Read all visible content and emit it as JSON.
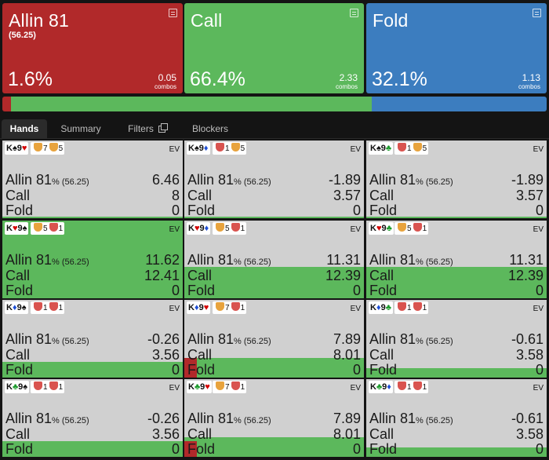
{
  "colors": {
    "allin": "#b1292a",
    "call": "#5cb85c",
    "fold": "#3c7dbf",
    "cell_bg": "#d0d0d0",
    "blocker_orange": "#e8a33d",
    "blocker_red": "#d9534f"
  },
  "actions": [
    {
      "name": "Allin 81",
      "sub": "(56.25)",
      "freq": "1.6%",
      "combos": "0.05",
      "combos_label": "combos",
      "color": "#b1292a",
      "share": 0.016
    },
    {
      "name": "Call",
      "sub": "",
      "freq": "66.4%",
      "combos": "2.33",
      "combos_label": "combos",
      "color": "#5cb85c",
      "share": 0.664
    },
    {
      "name": "Fold",
      "sub": "",
      "freq": "32.1%",
      "combos": "1.13",
      "combos_label": "combos",
      "color": "#3c7dbf",
      "share": 0.321
    }
  ],
  "tabs": [
    {
      "label": "Hands",
      "active": true
    },
    {
      "label": "Summary",
      "active": false
    },
    {
      "label": "Filters",
      "active": false,
      "icon": "copy-icon"
    },
    {
      "label": "Blockers",
      "active": false
    }
  ],
  "cell_labels": {
    "allin": "Allin 81",
    "allin_pct": "%",
    "allin_sub": "(56.25)",
    "call": "Call",
    "fold": "Fold",
    "ev": "EV"
  },
  "cells": [
    {
      "hand": [
        [
          "K",
          "♠",
          "#111"
        ],
        [
          "9",
          "♥",
          "#d40000"
        ]
      ],
      "blockers": [
        [
          "#e8a33d",
          "7"
        ],
        [
          "#e8a33d",
          "5"
        ]
      ],
      "allin": "6.46",
      "call": "8",
      "fold": "0",
      "f_allin": 0,
      "f_call": 0.02,
      "f_fold": 0.98
    },
    {
      "hand": [
        [
          "K",
          "♠",
          "#111"
        ],
        [
          "9",
          "♦",
          "#1f4fd6"
        ]
      ],
      "blockers": [
        [
          "#d9534f",
          "1"
        ],
        [
          "#e8a33d",
          "5"
        ]
      ],
      "allin": "-1.89",
      "call": "3.57",
      "fold": "0",
      "f_allin": 0,
      "f_call": 0.02,
      "f_fold": 0.98
    },
    {
      "hand": [
        [
          "K",
          "♠",
          "#111"
        ],
        [
          "9",
          "♣",
          "#1a9a2a"
        ]
      ],
      "blockers": [
        [
          "#d9534f",
          "1"
        ],
        [
          "#e8a33d",
          "5"
        ]
      ],
      "allin": "-1.89",
      "call": "3.57",
      "fold": "0",
      "f_allin": 0,
      "f_call": 0.02,
      "f_fold": 0.98
    },
    {
      "hand": [
        [
          "K",
          "♥",
          "#d40000"
        ],
        [
          "9",
          "♠",
          "#111"
        ]
      ],
      "blockers": [
        [
          "#e8a33d",
          "5"
        ],
        [
          "#d9534f",
          "1"
        ]
      ],
      "allin": "11.62",
      "call": "12.41",
      "fold": "0",
      "f_allin": 0,
      "f_call": 1,
      "f_fold": 0
    },
    {
      "hand": [
        [
          "K",
          "♥",
          "#d40000"
        ],
        [
          "9",
          "♦",
          "#1f4fd6"
        ]
      ],
      "blockers": [
        [
          "#e8a33d",
          "5"
        ],
        [
          "#d9534f",
          "1"
        ]
      ],
      "allin": "11.31",
      "call": "12.39",
      "fold": "0",
      "f_allin": 0,
      "f_call": 0.4,
      "f_fold": 0
    },
    {
      "hand": [
        [
          "K",
          "♥",
          "#d40000"
        ],
        [
          "9",
          "♣",
          "#1a9a2a"
        ]
      ],
      "blockers": [
        [
          "#e8a33d",
          "5"
        ],
        [
          "#d9534f",
          "1"
        ]
      ],
      "allin": "11.31",
      "call": "12.39",
      "fold": "0",
      "f_allin": 0,
      "f_call": 0.4,
      "f_fold": 0
    },
    {
      "hand": [
        [
          "K",
          "♦",
          "#1f4fd6"
        ],
        [
          "9",
          "♠",
          "#111"
        ]
      ],
      "blockers": [
        [
          "#d9534f",
          "1"
        ],
        [
          "#d9534f",
          "1"
        ]
      ],
      "allin": "-0.26",
      "call": "3.56",
      "fold": "0",
      "f_allin": 0,
      "f_call": 0.2,
      "f_fold": 0
    },
    {
      "hand": [
        [
          "K",
          "♦",
          "#1f4fd6"
        ],
        [
          "9",
          "♥",
          "#d40000"
        ]
      ],
      "blockers": [
        [
          "#e8a33d",
          "7"
        ],
        [
          "#d9534f",
          "1"
        ]
      ],
      "allin": "7.89",
      "call": "8.01",
      "fold": "0",
      "f_allin": 0.25,
      "f_call": 0.25,
      "f_fold": 0
    },
    {
      "hand": [
        [
          "K",
          "♦",
          "#1f4fd6"
        ],
        [
          "9",
          "♣",
          "#1a9a2a"
        ]
      ],
      "blockers": [
        [
          "#d9534f",
          "1"
        ],
        [
          "#d9534f",
          "1"
        ]
      ],
      "allin": "-0.61",
      "call": "3.58",
      "fold": "0",
      "f_allin": 0,
      "f_call": 0.12,
      "f_fold": 0
    },
    {
      "hand": [
        [
          "K",
          "♣",
          "#1a9a2a"
        ],
        [
          "9",
          "♠",
          "#111"
        ]
      ],
      "blockers": [
        [
          "#d9534f",
          "1"
        ],
        [
          "#d9534f",
          "1"
        ]
      ],
      "allin": "-0.26",
      "call": "3.56",
      "fold": "0",
      "f_allin": 0,
      "f_call": 0.2,
      "f_fold": 0
    },
    {
      "hand": [
        [
          "K",
          "♣",
          "#1a9a2a"
        ],
        [
          "9",
          "♥",
          "#d40000"
        ]
      ],
      "blockers": [
        [
          "#e8a33d",
          "7"
        ],
        [
          "#d9534f",
          "1"
        ]
      ],
      "allin": "7.89",
      "call": "8.01",
      "fold": "0",
      "f_allin": 0.2,
      "f_call": 0.25,
      "f_fold": 0
    },
    {
      "hand": [
        [
          "K",
          "♣",
          "#1a9a2a"
        ],
        [
          "9",
          "♦",
          "#1f4fd6"
        ]
      ],
      "blockers": [
        [
          "#d9534f",
          "1"
        ],
        [
          "#d9534f",
          "1"
        ]
      ],
      "allin": "-0.61",
      "call": "3.58",
      "fold": "0",
      "f_allin": 0,
      "f_call": 0.12,
      "f_fold": 0
    }
  ]
}
